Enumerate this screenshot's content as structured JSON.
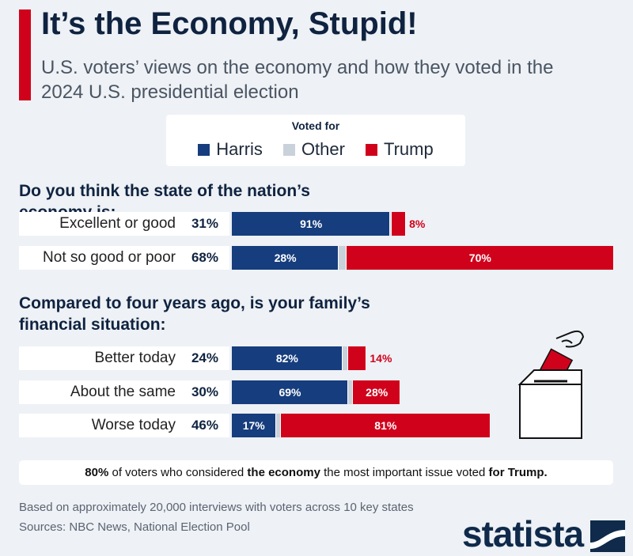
{
  "title": "It’s the Economy, Stupid!",
  "subtitle": "U.S. voters’ views on the economy and how they voted in the 2024 U.S. presidential election",
  "chart_data": {
    "type": "bar",
    "orientation": "horizontal",
    "stacked": true,
    "legend_title": "Voted for",
    "groups": [
      {
        "title": "Do you think the state of the nation’s economy is:",
        "categories": [
          "Excellent or good",
          "Not so good or poor"
        ],
        "shares": [
          31,
          68
        ],
        "share_labels": [
          "31%",
          "68%"
        ]
      },
      {
        "title": "Compared to four years ago, is your family’s financial situation:",
        "categories": [
          "Better today",
          "About the same",
          "Worse today"
        ],
        "shares": [
          24,
          30,
          46
        ],
        "share_labels": [
          "24%",
          "30%",
          "46%"
        ]
      }
    ],
    "series": [
      {
        "name": "Harris",
        "color": "#163d7d",
        "values": [
          91,
          28,
          82,
          69,
          17
        ],
        "value_labels": [
          "91%",
          "28%",
          "82%",
          "69%",
          "17%"
        ]
      },
      {
        "name": "Other",
        "color": "#c9d1da",
        "values": [
          1,
          2,
          4,
          3,
          2
        ]
      },
      {
        "name": "Trump",
        "color": "#d0021b",
        "values": [
          8,
          70,
          14,
          28,
          81
        ],
        "value_labels": [
          "8%",
          "70%",
          "14%",
          "28%",
          "81%"
        ]
      }
    ]
  },
  "callout": [
    "80%",
    " of voters who considered ",
    "the economy",
    " the most important issue voted ",
    "for Trump."
  ],
  "note": "Based on approximately 20,000 interviews with voters across 10 key states",
  "source": "Sources: NBC News, National Election Pool",
  "logo": "statista"
}
